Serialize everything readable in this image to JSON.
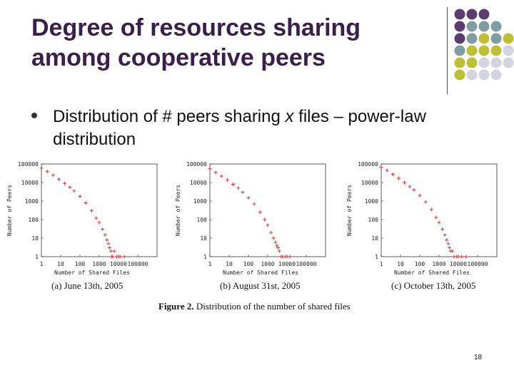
{
  "slide": {
    "title_line1": "Degree of resources sharing",
    "title_line2": "among cooperative peers",
    "bullet_pre": "Distribution of # peers sharing ",
    "bullet_var": "x",
    "bullet_post": " files – power-law distribution",
    "page_number": "18",
    "deco_colors": [
      "#5a3d6e",
      "#7f9ea3",
      "#bdbf34",
      "#d4d4e0"
    ]
  },
  "figure": {
    "label": "Figure 2.",
    "caption": "Distribution of the number of shared files"
  },
  "chart_data": [
    {
      "type": "scatter",
      "caption": "(a) June 13th, 2005",
      "xlabel": "Number of Shared Files",
      "ylabel": "Number of Peers",
      "x_scale": "log",
      "y_scale": "log",
      "xlim": [
        1,
        1000000
      ],
      "ylim": [
        1,
        100000
      ],
      "x_ticks": [
        "1",
        "10",
        "100",
        "1000",
        "10000",
        "100000"
      ],
      "y_ticks": [
        "1",
        "10",
        "100",
        "1000",
        "10000",
        "100000"
      ],
      "marker": "+",
      "color": "#e02020",
      "series": [
        {
          "x": [
            1,
            2,
            4,
            8,
            16,
            30,
            50,
            100,
            200,
            400,
            700,
            1000,
            1500,
            2000,
            2500,
            3000,
            3500,
            4000,
            4500,
            5000,
            6000,
            8000,
            10000,
            12000,
            20000
          ],
          "y": [
            60000,
            40000,
            25000,
            15000,
            9000,
            5500,
            3500,
            1800,
            800,
            300,
            120,
            70,
            30,
            15,
            8,
            5,
            3,
            2,
            1,
            1,
            2,
            1,
            1,
            1,
            1
          ]
        }
      ]
    },
    {
      "type": "scatter",
      "caption": "(b) August 31st, 2005",
      "xlabel": "Number of Shared Files",
      "ylabel": "Number of Peers",
      "x_scale": "log",
      "y_scale": "log",
      "xlim": [
        1,
        1000000
      ],
      "ylim": [
        1,
        100000
      ],
      "x_ticks": [
        "1",
        "10",
        "100",
        "1000",
        "10000",
        "100000"
      ],
      "y_ticks": [
        "1",
        "10",
        "100",
        "1000",
        "10000",
        "100000"
      ],
      "marker": "+",
      "color": "#e02020",
      "series": [
        {
          "x": [
            1,
            2,
            4,
            8,
            16,
            30,
            50,
            100,
            200,
            400,
            700,
            1000,
            1500,
            2000,
            2500,
            3000,
            3500,
            4000,
            5000,
            6000,
            8000,
            10000,
            14000
          ],
          "y": [
            55000,
            35000,
            22000,
            14000,
            8000,
            5000,
            3000,
            1500,
            700,
            250,
            100,
            50,
            20,
            10,
            6,
            4,
            3,
            2,
            1,
            1,
            1,
            1,
            1
          ]
        }
      ]
    },
    {
      "type": "scatter",
      "caption": "(c) October 13th, 2005",
      "xlabel": "Number of Shared Files",
      "ylabel": "Number of Peers",
      "x_scale": "log",
      "y_scale": "log",
      "xlim": [
        1,
        1000000
      ],
      "ylim": [
        1,
        100000
      ],
      "x_ticks": [
        "1",
        "10",
        "100",
        "1000",
        "10000",
        "100000"
      ],
      "y_ticks": [
        "1",
        "10",
        "100",
        "1000",
        "10000",
        "100000"
      ],
      "marker": "+",
      "color": "#e02020",
      "series": [
        {
          "x": [
            1,
            2,
            4,
            8,
            16,
            30,
            50,
            100,
            200,
            400,
            700,
            1000,
            1500,
            2000,
            2500,
            3000,
            3500,
            4000,
            5000,
            6000,
            8000,
            10000,
            15000,
            25000
          ],
          "y": [
            65000,
            45000,
            28000,
            17000,
            10000,
            6000,
            4000,
            2000,
            900,
            350,
            130,
            70,
            30,
            15,
            8,
            5,
            3,
            2,
            2,
            1,
            1,
            1,
            1,
            1
          ]
        }
      ]
    }
  ]
}
